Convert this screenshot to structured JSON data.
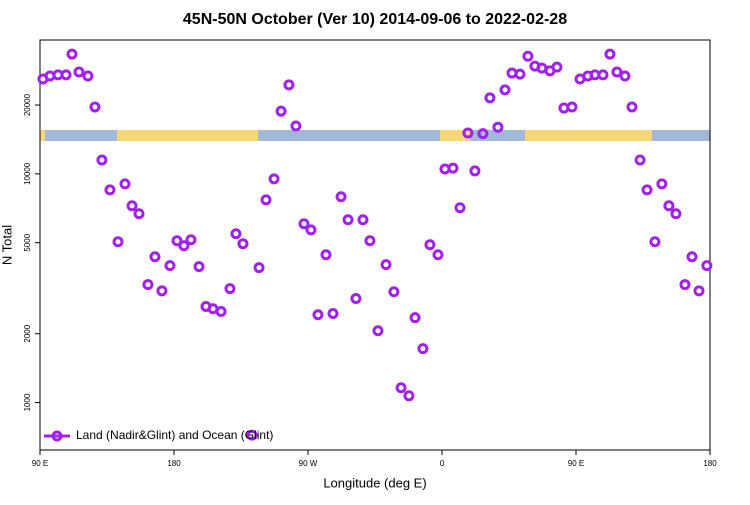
{
  "chart_data": {
    "type": "scatter",
    "title": "45N-50N October (Ver 10)   2014-09-06 to 2022-02-28",
    "xlabel": "Longitude (deg E)",
    "ylabel": "N Total",
    "log_y": true,
    "legend": "lower left",
    "xlim": [
      90,
      540
    ],
    "ylim": [
      620,
      38500
    ],
    "xticks": [
      {
        "value": 90,
        "label": "90 E"
      },
      180,
      {
        "value": 270,
        "label": "90 W"
      },
      {
        "value": 360,
        "label": "0"
      },
      {
        "value": 450,
        "label": "90 E"
      },
      {
        "value": 540,
        "label": "180"
      }
    ],
    "yticks": [
      1000,
      2000,
      5000,
      10000,
      20000
    ],
    "series": [
      {
        "name": "Land (Nadir&Glint) and Ocean (Glint)",
        "color": "#a020f0",
        "x": [
          92,
          96.7,
          102.1,
          107.5,
          111.5,
          116.2,
          122.2,
          126.9,
          131.6,
          137,
          142.4,
          147.1,
          151.8,
          156.5,
          162.5,
          167.2,
          171.9,
          177.3,
          182,
          186.7,
          191.4,
          196.8,
          201.5,
          206.2,
          211.6,
          217.6,
          221.6,
          226.3,
          232.4,
          237.1,
          241.8,
          247.2,
          251.9,
          257.2,
          261.9,
          267.3,
          272,
          276.7,
          282.1,
          286.8,
          292.2,
          296.9,
          302.2,
          306.9,
          311.6,
          317,
          322.4,
          327.7,
          332.5,
          337.8,
          341.9,
          347.2,
          351.9,
          357.3,
          362,
          367.4,
          372.1,
          377.4,
          382.1,
          387.5,
          392.2,
          397.6,
          402.3,
          407,
          412.4,
          417.7,
          422.4,
          427.1,
          432.5,
          437.2,
          441.9,
          447.3,
          452.7,
          458,
          462.7,
          468.1,
          472.8,
          477.5,
          482.9,
          487.6,
          493,
          497.7,
          503,
          507.7,
          512.4,
          517.1,
          523.2,
          527.9,
          532.6,
          537.9
        ],
        "values": [
          26000,
          26800,
          27100,
          27100,
          33400,
          27900,
          26800,
          19600,
          11500,
          8510,
          5050,
          9040,
          7250,
          6690,
          3280,
          4340,
          3080,
          3970,
          5100,
          4850,
          5150,
          3930,
          2630,
          2570,
          2500,
          3150,
          5470,
          4950,
          720,
          3890,
          7700,
          9510,
          18800,
          24500,
          16200,
          6050,
          5690,
          2420,
          4430,
          2450,
          7940,
          6300,
          2850,
          6300,
          5100,
          2060,
          4010,
          3050,
          1160,
          1070,
          2350,
          1720,
          4900,
          4430,
          10500,
          10600,
          7110,
          15100,
          10300,
          15000,
          21500,
          16000,
          23300,
          27600,
          27300,
          32700,
          29600,
          29000,
          28200,
          29300,
          19400,
          19600,
          26000,
          26800,
          27100,
          27100,
          33400,
          27900,
          26800,
          19600,
          11500,
          8510,
          5050,
          9040,
          7250,
          6690,
          3280,
          4340,
          3080,
          3970
        ]
      }
    ]
  }
}
